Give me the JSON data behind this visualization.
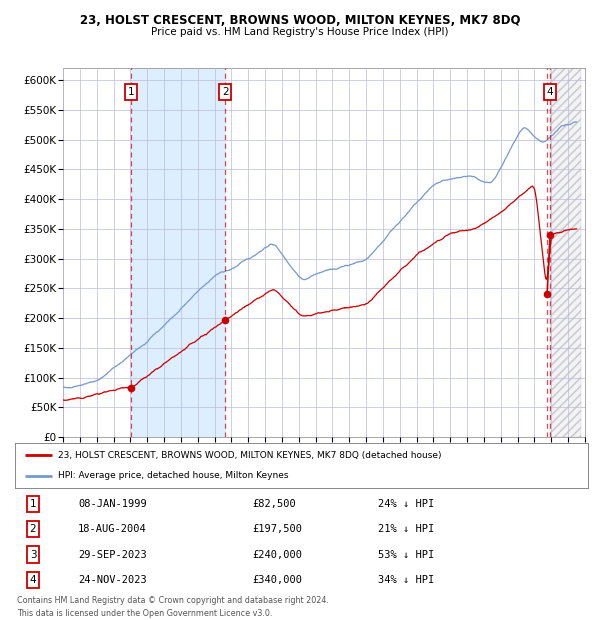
{
  "title": "23, HOLST CRESCENT, BROWNS WOOD, MILTON KEYNES, MK7 8DQ",
  "subtitle": "Price paid vs. HM Land Registry's House Price Index (HPI)",
  "xlim": [
    1995.0,
    2025.75
  ],
  "ylim": [
    0,
    620000
  ],
  "yticks": [
    0,
    50000,
    100000,
    150000,
    200000,
    250000,
    300000,
    350000,
    400000,
    450000,
    500000,
    550000,
    600000
  ],
  "xticks": [
    1995,
    1996,
    1997,
    1998,
    1999,
    2000,
    2001,
    2002,
    2003,
    2004,
    2005,
    2006,
    2007,
    2008,
    2009,
    2010,
    2011,
    2012,
    2013,
    2014,
    2015,
    2016,
    2017,
    2018,
    2019,
    2020,
    2021,
    2022,
    2023,
    2024,
    2025,
    2026
  ],
  "hpi_color": "#7799cc",
  "price_color": "#cc0000",
  "dot_color": "#cc0000",
  "vline_color": "#cc0000",
  "grid_color": "#bbbbdd",
  "bg_color": "#ffffff",
  "shade_color": "#ddeeff",
  "transactions": [
    {
      "label": "1",
      "date": 1999.03,
      "price": 82500,
      "show_box": true
    },
    {
      "label": "2",
      "date": 2004.63,
      "price": 197500,
      "show_box": true
    },
    {
      "label": "3",
      "date": 2023.75,
      "price": 240000,
      "show_box": false
    },
    {
      "label": "4",
      "date": 2023.92,
      "price": 340000,
      "show_box": true
    }
  ],
  "table_rows": [
    {
      "num": "1",
      "date": "08-JAN-1999",
      "price": "£82,500",
      "note": "24% ↓ HPI"
    },
    {
      "num": "2",
      "date": "18-AUG-2004",
      "price": "£197,500",
      "note": "21% ↓ HPI"
    },
    {
      "num": "3",
      "date": "29-SEP-2023",
      "price": "£240,000",
      "note": "53% ↓ HPI"
    },
    {
      "num": "4",
      "date": "24-NOV-2023",
      "price": "£340,000",
      "note": "34% ↓ HPI"
    }
  ],
  "legend_line1": "23, HOLST CRESCENT, BROWNS WOOD, MILTON KEYNES, MK7 8DQ (detached house)",
  "legend_line2": "HPI: Average price, detached house, Milton Keynes",
  "footnote1": "Contains HM Land Registry data © Crown copyright and database right 2024.",
  "footnote2": "This data is licensed under the Open Government Licence v3.0.",
  "hatch_start": 2023.92,
  "hatch_end": 2025.75
}
